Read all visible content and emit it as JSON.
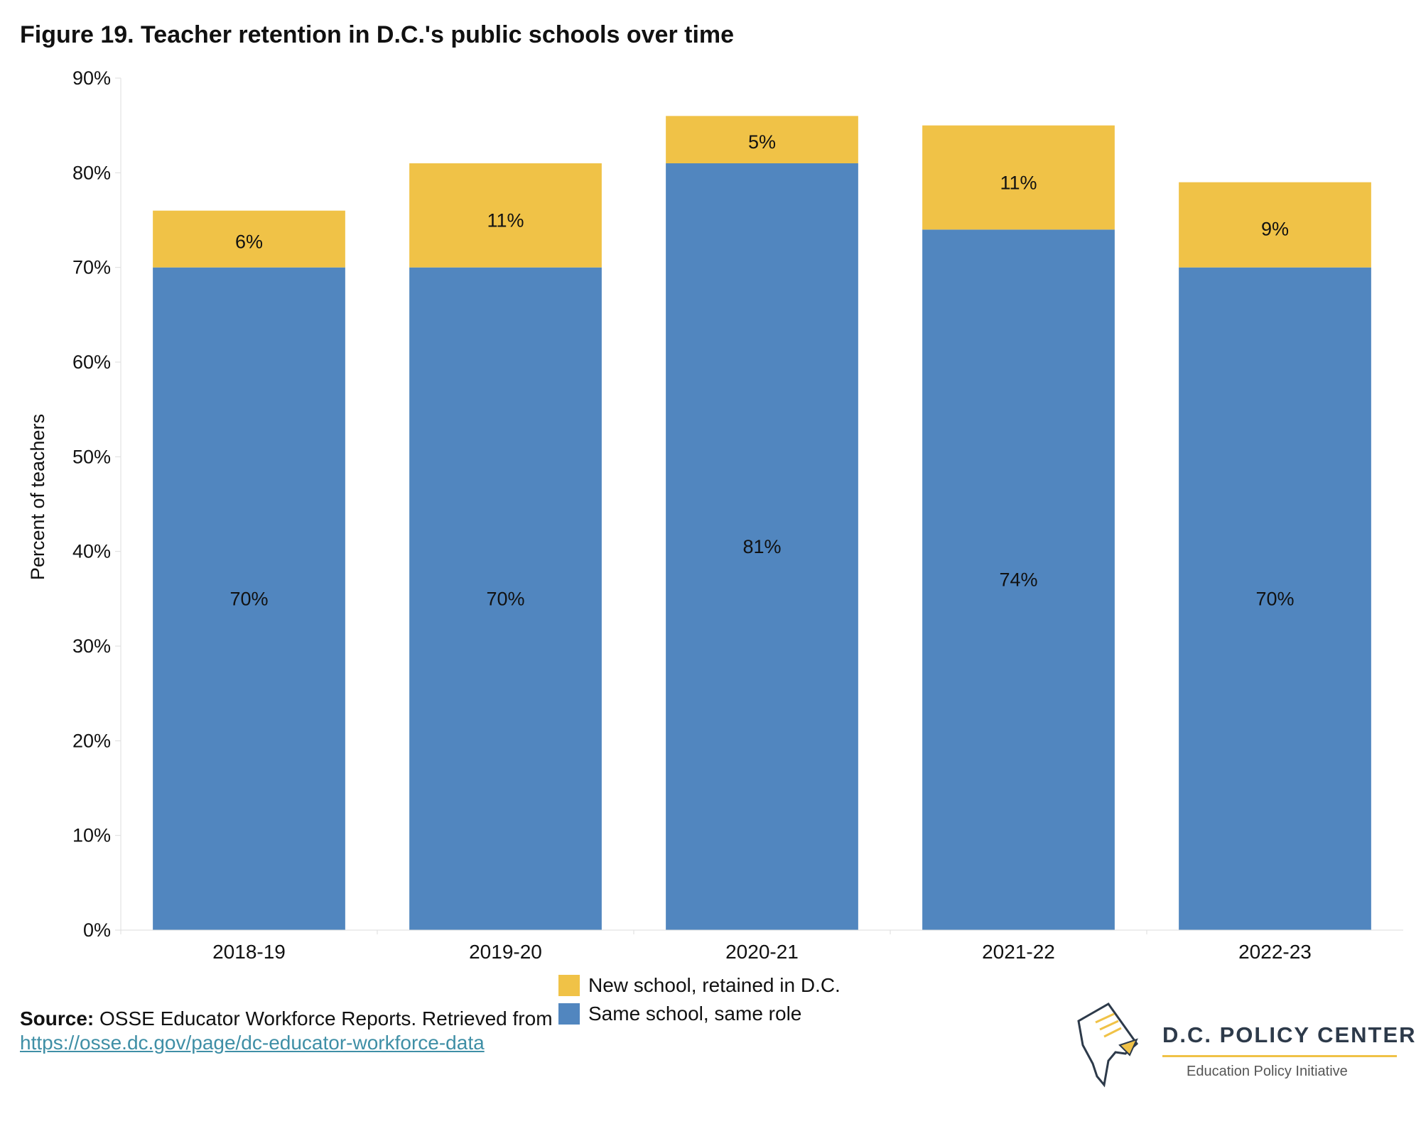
{
  "title": "Figure 19. Teacher retention in D.C.'s public schools over time",
  "chart_data": {
    "type": "bar",
    "stacked": true,
    "categories": [
      "2018-19",
      "2019-20",
      "2020-21",
      "2021-22",
      "2022-23"
    ],
    "series": [
      {
        "name": "Same school, same role",
        "color": "#5186bf",
        "values": [
          70,
          70,
          81,
          74,
          70
        ],
        "labels": [
          "70%",
          "70%",
          "81%",
          "74%",
          "70%"
        ]
      },
      {
        "name": "New school, retained in D.C.",
        "color": "#f0c247",
        "values": [
          6,
          11,
          5,
          11,
          9
        ],
        "labels": [
          "6%",
          "11%",
          "5%",
          "11%",
          "9%"
        ]
      }
    ],
    "ylabel": "Percent of teachers",
    "xlabel": "",
    "ylim": [
      0,
      90
    ],
    "yticks": [
      0,
      10,
      20,
      30,
      40,
      50,
      60,
      70,
      80,
      90
    ],
    "ytick_labels": [
      "0%",
      "10%",
      "20%",
      "30%",
      "40%",
      "50%",
      "60%",
      "70%",
      "80%",
      "90%"
    ],
    "grid": false,
    "legend_position": "bottom-center"
  },
  "legend": [
    {
      "label": "New school, retained in D.C.",
      "color": "#f0c247"
    },
    {
      "label": "Same school, same role",
      "color": "#5186bf"
    }
  ],
  "source": {
    "label": "Source:",
    "text": " OSSE Educator Workforce Reports. Retrieved from ",
    "link": "https://osse.dc.gov/page/dc-educator-workforce-data"
  },
  "logo": {
    "name": "D.C. POLICY CENTER",
    "subtitle": "Education Policy Initiative",
    "icon": "dc-map-pencil-icon"
  }
}
